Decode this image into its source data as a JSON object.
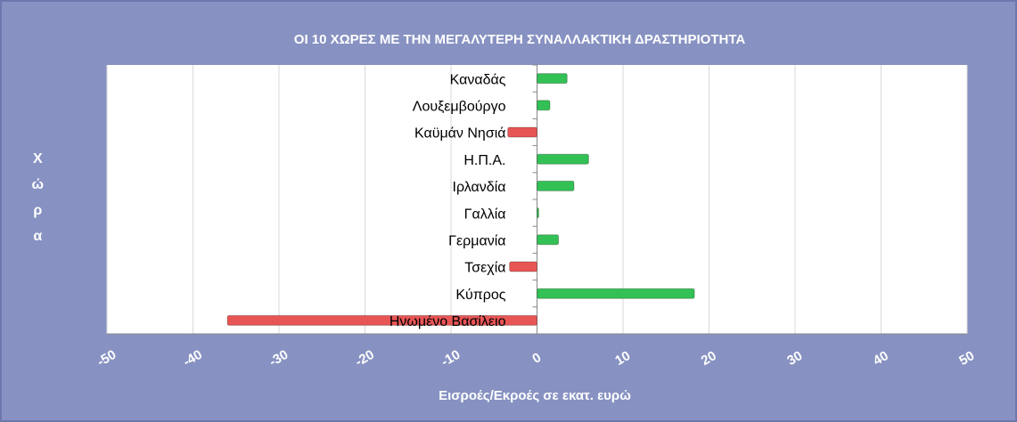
{
  "chart_data": {
    "type": "barh",
    "title": "ΟΙ 10 ΧΩΡΕΣ ΜΕ ΤΗΝ ΜΕΓΑΛΥΤΕΡΗ ΣΥΝΑΛΛΑΚΤΙΚΗ ΔΡΑΣΤΗΡΙΟΤΗΤΑ",
    "x_label": "Εισροές/Εκροές σε εκατ. ευρώ",
    "y_label": "Χώρα",
    "categories": [
      "Καναδάς",
      "Λουξεμβούργο",
      "Καϋμάν Νησιά",
      "Η.Π.Α.",
      "Ιρλανδία",
      "Γαλλία",
      "Γερμανία",
      "Τσεχία",
      "Κύπρος",
      "Ηνωμένο Βασίλειο"
    ],
    "values": [
      3.5,
      1.5,
      -3.4,
      6,
      4.3,
      0.2,
      2.5,
      -3.2,
      18.3,
      -36
    ],
    "color": "#33c155",
    "negative_color": "#e85555",
    "xlim": [
      -50,
      50
    ],
    "xticks": [
      -50,
      -40,
      -30,
      -20,
      -10,
      0,
      10,
      20,
      30,
      40,
      50
    ],
    "grid": true
  }
}
